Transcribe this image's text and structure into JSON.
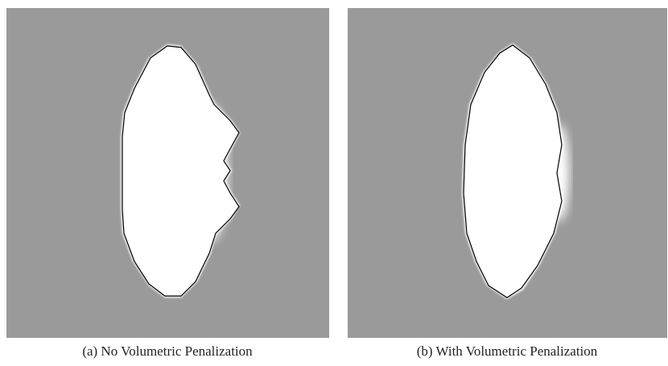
{
  "panels": [
    {
      "caption": "(a) No Volumetric Penalization"
    },
    {
      "caption": "(b) With Volumetric Penalization"
    }
  ]
}
